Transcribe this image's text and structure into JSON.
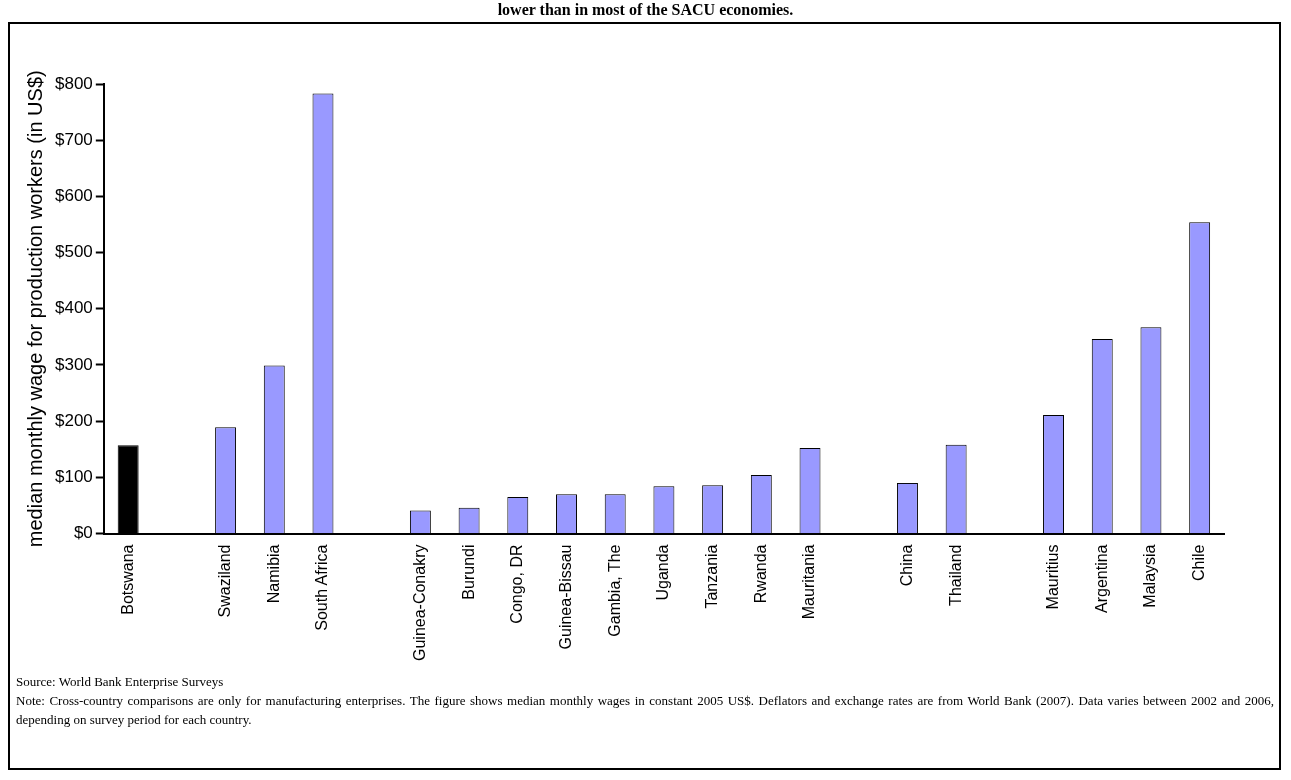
{
  "chart_data": {
    "type": "bar",
    "title": "lower than in most of the SACU economies.",
    "ylabel": "median monthly wage for production workers (in US$)",
    "categories": [
      "Botswana",
      null,
      "Swaziland",
      "Namibia",
      "South Africa",
      null,
      "Guinea-Conakry",
      "Burundi",
      "Congo, DR",
      "Guinea-Bissau",
      "Gambia, The",
      "Uganda",
      "Tanzania",
      "Rwanda",
      "Mauritania",
      null,
      "China",
      "Thailand",
      null,
      "Mauritius",
      "Argentina",
      "Malaysia",
      "Chile"
    ],
    "values": [
      157,
      null,
      189,
      299,
      783,
      null,
      41,
      46,
      65,
      70,
      70,
      84,
      86,
      104,
      152,
      null,
      90,
      158,
      null,
      211,
      346,
      367,
      554
    ],
    "colors": [
      "#000000",
      null,
      "#9999ff",
      "#9999ff",
      "#9999ff",
      null,
      "#9999ff",
      "#9999ff",
      "#9999ff",
      "#9999ff",
      "#9999ff",
      "#9999ff",
      "#9999ff",
      "#9999ff",
      "#9999ff",
      null,
      "#9999ff",
      "#9999ff",
      null,
      "#9999ff",
      "#9999ff",
      "#9999ff",
      "#9999ff"
    ],
    "ylim": [
      0,
      800
    ],
    "yticks": [
      {
        "value": 0,
        "label": "$0"
      },
      {
        "value": 100,
        "label": "$100"
      },
      {
        "value": 200,
        "label": "$200"
      },
      {
        "value": 300,
        "label": "$300"
      },
      {
        "value": 400,
        "label": "$400"
      },
      {
        "value": 500,
        "label": "$500"
      },
      {
        "value": 600,
        "label": "$600"
      },
      {
        "value": 700,
        "label": "$700"
      },
      {
        "value": 800,
        "label": "$800"
      }
    ],
    "grid": false,
    "legend": false,
    "annotations": [
      "Source: World Bank Enterprise Surveys",
      "Note: Cross-country comparisons are only for manufacturing enterprises.  The figure shows median monthly wages in constant 2005 US$.  Deflators and exchange rates are from World Bank (2007).  Data varies between 2002 and 2006, depending on survey period for each country."
    ]
  }
}
